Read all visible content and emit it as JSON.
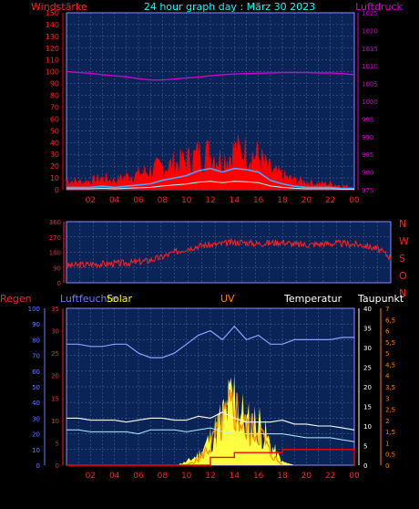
{
  "header": {
    "left": "Windstärke",
    "center": "24 hour graph day : März 30 2023",
    "right": "Luftdruck"
  },
  "colors": {
    "bg": "#000000",
    "plot_bg": "#0b2458",
    "grid": "#4f6aa0",
    "frame": "#8a8aff",
    "wind": "#ff0000",
    "gust_fill": "#ff0000",
    "wind_avg": "#4aa3ff",
    "wind_low": "#9ff",
    "pressure": "#d000d0",
    "direction": "#ff2020",
    "humidity": "#8ea0ff",
    "temperature": "#ffffff",
    "dewpoint": "#b0f0ff",
    "solar": "#ffff40",
    "uv": "#ff8800",
    "rain": "#ff0000",
    "label_red": "#ff2020",
    "label_cyan": "#00ffff",
    "label_magenta": "#d000d0",
    "label_blue": "#6a7bff",
    "label_yellow": "#ffff00",
    "label_orange": "#ff8000",
    "label_white": "#ffffff"
  },
  "x_ticks": [
    "02",
    "04",
    "06",
    "08",
    "10",
    "12",
    "14",
    "16",
    "18",
    "20",
    "22",
    "00"
  ],
  "chart_data": [
    {
      "type": "line",
      "name": "wind",
      "title": "24 hour graph day : März 30 2023",
      "ylabel_left": "Windstärke",
      "ylabel_right": "Luftdruck",
      "ylim_left": [
        0,
        150
      ],
      "yticks_left": [
        "0",
        "10",
        "20",
        "30",
        "40",
        "50",
        "60",
        "70",
        "80",
        "90",
        "100",
        "110",
        "120",
        "130",
        "140",
        "150"
      ],
      "ylim_right": [
        975,
        1025
      ],
      "yticks_right": [
        "975",
        "980",
        "985",
        "990",
        "995",
        "1000",
        "1005",
        "1010",
        "1015",
        "1020",
        "1025"
      ],
      "x_hours": [
        0,
        1,
        2,
        3,
        4,
        5,
        6,
        7,
        8,
        9,
        10,
        11,
        12,
        13,
        14,
        15,
        16,
        17,
        18,
        19,
        20,
        21,
        22,
        23,
        24
      ],
      "gust": [
        10,
        8,
        9,
        12,
        9,
        14,
        16,
        20,
        24,
        26,
        30,
        36,
        38,
        30,
        40,
        38,
        34,
        20,
        14,
        10,
        8,
        6,
        6,
        4,
        3
      ],
      "wind_avg": [
        2,
        2,
        2,
        3,
        2,
        3,
        4,
        5,
        8,
        10,
        12,
        16,
        18,
        15,
        18,
        17,
        15,
        8,
        5,
        3,
        2,
        2,
        2,
        1,
        1
      ],
      "pressure": [
        1008.4,
        1008.1,
        1007.9,
        1007.5,
        1007.2,
        1006.9,
        1006.4,
        1006.0,
        1006.0,
        1006.3,
        1006.6,
        1006.8,
        1007.2,
        1007.5,
        1007.7,
        1007.8,
        1007.9,
        1008.0,
        1008.1,
        1008.1,
        1008.1,
        1008.0,
        1008.0,
        1007.8,
        1007.5
      ]
    },
    {
      "type": "line",
      "name": "direction",
      "ylabel_right": [
        "N",
        "W",
        "S",
        "O",
        "N"
      ],
      "ylim": [
        0,
        360
      ],
      "yticks": [
        "0",
        "90",
        "180",
        "270",
        "360"
      ],
      "x_hours": [
        0,
        1,
        2,
        3,
        4,
        5,
        6,
        7,
        8,
        9,
        10,
        11,
        12,
        13,
        14,
        15,
        16,
        17,
        18,
        19,
        20,
        21,
        22,
        23,
        24
      ],
      "values": [
        100,
        105,
        110,
        112,
        115,
        120,
        130,
        150,
        180,
        205,
        220,
        225,
        235,
        240,
        230,
        235,
        240,
        225,
        225,
        230,
        232,
        228,
        222,
        200,
        150
      ]
    },
    {
      "type": "line",
      "name": "weather",
      "labels": [
        "Regen",
        "Luftfeuchte",
        "Solar",
        "UV",
        "Temperatur",
        "Taupunkt"
      ],
      "axis_rain": [
        "0",
        "10",
        "20",
        "30",
        "40",
        "50",
        "60",
        "70",
        "80",
        "90",
        "100"
      ],
      "axis_humidity": [
        "0",
        "5",
        "10",
        "15",
        "20",
        "25",
        "30",
        "35"
      ],
      "axis_temperature": [
        "0",
        "5",
        "10",
        "15",
        "20",
        "25",
        "30",
        "35",
        "40"
      ],
      "axis_dewpoint": [
        "0",
        "0,5",
        "1",
        "1,5",
        "2",
        "2,5",
        "3",
        "3,5",
        "4",
        "4,5",
        "5",
        "5,5",
        "6",
        "6,5",
        "7"
      ],
      "x_hours": [
        0,
        1,
        2,
        3,
        4,
        5,
        6,
        7,
        8,
        9,
        10,
        11,
        12,
        13,
        14,
        15,
        16,
        17,
        18,
        19,
        20,
        21,
        22,
        23,
        24
      ],
      "humidity": [
        27,
        27,
        26.5,
        26.5,
        27,
        27,
        25,
        24,
        24,
        25,
        27,
        29,
        30,
        28,
        31,
        28,
        29,
        27,
        27,
        28,
        28,
        28,
        28,
        28.5,
        28.5
      ],
      "temperature": [
        12,
        12,
        11.5,
        11.5,
        11.5,
        11,
        11.5,
        12,
        12,
        11.5,
        11.5,
        12.5,
        12,
        13.5,
        12,
        11,
        11,
        11,
        11.5,
        10.5,
        10.5,
        10,
        10,
        9.5,
        9
      ],
      "dewpoint": [
        9,
        9,
        8.5,
        8.5,
        8.5,
        8.5,
        8,
        9,
        9,
        9,
        8.5,
        9,
        9.5,
        8.5,
        8,
        8,
        8,
        8,
        8,
        7.5,
        7,
        7,
        7,
        6.5,
        6
      ],
      "solar": [
        0,
        0,
        0,
        0,
        0,
        0,
        0,
        0,
        0,
        0,
        1,
        3,
        8,
        14,
        21,
        12,
        13,
        6,
        1,
        0,
        0,
        0,
        0,
        0,
        0
      ],
      "uv": [
        0,
        0,
        0,
        0,
        0,
        0,
        0,
        0,
        0,
        0,
        0,
        0.3,
        1,
        2.2,
        3.1,
        1.8,
        1.9,
        0.6,
        0,
        0,
        0,
        0,
        0,
        0,
        0
      ],
      "rain": [
        0,
        0,
        0,
        0,
        0,
        0,
        0,
        0,
        0,
        0,
        0,
        0,
        5,
        5,
        8,
        8,
        8,
        8,
        10,
        10,
        10,
        10,
        10,
        10,
        0
      ]
    }
  ]
}
